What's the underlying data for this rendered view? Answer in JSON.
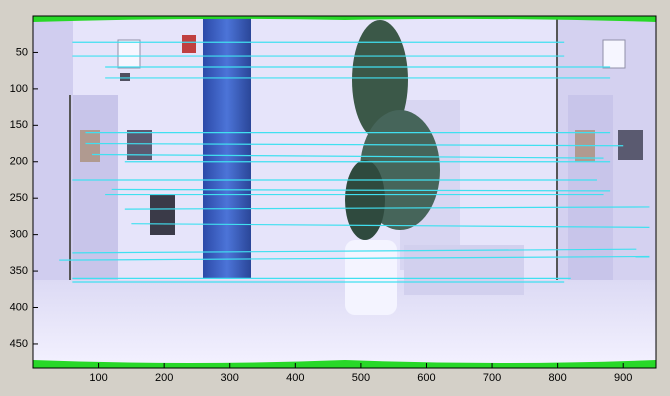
{
  "chart_data": {
    "type": "image-matches",
    "xlim": [
      0,
      950
    ],
    "ylim": [
      0,
      483
    ],
    "y_reversed": true,
    "xticks": [
      100,
      200,
      300,
      400,
      500,
      600,
      700,
      800,
      900
    ],
    "yticks": [
      50,
      100,
      150,
      200,
      250,
      300,
      350,
      400,
      450
    ],
    "color": "#40e0f0",
    "lines": [
      {
        "x": [
          60,
          810
        ],
        "y": [
          36,
          36
        ]
      },
      {
        "x": [
          60,
          810
        ],
        "y": [
          55,
          55
        ]
      },
      {
        "x": [
          110,
          880
        ],
        "y": [
          70,
          70
        ]
      },
      {
        "x": [
          110,
          880
        ],
        "y": [
          85,
          85
        ]
      },
      {
        "x": [
          80,
          880
        ],
        "y": [
          160,
          160
        ]
      },
      {
        "x": [
          80,
          900
        ],
        "y": [
          175,
          178
        ]
      },
      {
        "x": [
          90,
          870
        ],
        "y": [
          190,
          195
        ]
      },
      {
        "x": [
          140,
          880
        ],
        "y": [
          200,
          200
        ]
      },
      {
        "x": [
          60,
          860
        ],
        "y": [
          225,
          225
        ]
      },
      {
        "x": [
          120,
          880
        ],
        "y": [
          238,
          240
        ]
      },
      {
        "x": [
          110,
          870
        ],
        "y": [
          245,
          245
        ]
      },
      {
        "x": [
          140,
          940
        ],
        "y": [
          265,
          262
        ]
      },
      {
        "x": [
          150,
          940
        ],
        "y": [
          285,
          290
        ]
      },
      {
        "x": [
          60,
          920
        ],
        "y": [
          325,
          320
        ]
      },
      {
        "x": [
          40,
          940
        ],
        "y": [
          335,
          330
        ]
      },
      {
        "x": [
          60,
          820
        ],
        "y": [
          360,
          360
        ]
      },
      {
        "x": [
          60,
          810
        ],
        "y": [
          365,
          365
        ]
      }
    ]
  }
}
